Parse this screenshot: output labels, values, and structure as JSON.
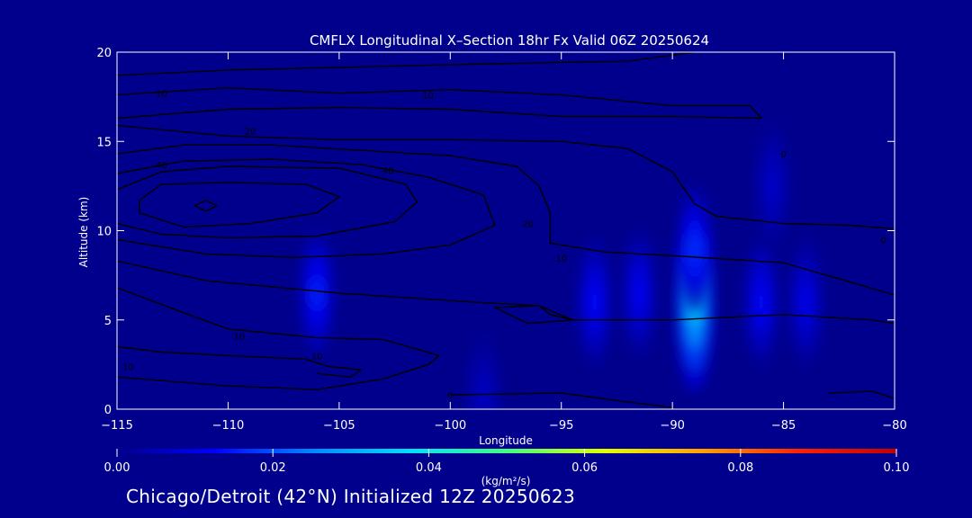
{
  "chart_data": {
    "type": "heatmap",
    "title": "CMFLX Longitudinal X–Section 18hr  Fx Valid 06Z 20250624",
    "xlabel": "Longitude",
    "ylabel": "Altitude (km)",
    "xlim": [
      -115,
      -80
    ],
    "ylim": [
      0,
      20
    ],
    "x_ticks": [
      -115,
      -110,
      -105,
      -100,
      -95,
      -90,
      -85,
      -80
    ],
    "x_tick_labels": [
      "−115",
      "−110",
      "−105",
      "−100",
      "−95",
      "−90",
      "−85",
      "−80"
    ],
    "y_ticks": [
      0,
      5,
      10,
      15,
      20
    ],
    "y_tick_labels": [
      "0",
      "5",
      "10",
      "15",
      "20"
    ],
    "colorbar": {
      "label": "(kg/m²/s)",
      "min": 0.0,
      "max": 0.1,
      "ticks": [
        0.0,
        0.02,
        0.04,
        0.06,
        0.08,
        0.1
      ],
      "tick_labels": [
        "0.00",
        "0.02",
        "0.04",
        "0.06",
        "0.08",
        "0.10"
      ],
      "colors": [
        "#00008c",
        "#0000ff",
        "#0088ff",
        "#00e0ff",
        "#40ff80",
        "#e0ff00",
        "#ffa000",
        "#ff2000",
        "#c00000"
      ]
    },
    "flux_cells": [
      {
        "lon": -106,
        "alt": 6.5,
        "value": 0.013
      },
      {
        "lon": -93.5,
        "alt": 6.0,
        "value": 0.011
      },
      {
        "lon": -91.5,
        "alt": 6.5,
        "value": 0.01
      },
      {
        "lon": -89.0,
        "alt": 5.8,
        "value": 0.03
      },
      {
        "lon": -89.0,
        "alt": 9.0,
        "value": 0.014
      },
      {
        "lon": -86.0,
        "alt": 6.0,
        "value": 0.011
      },
      {
        "lon": -84.0,
        "alt": 6.0,
        "value": 0.009
      },
      {
        "lon": -85.5,
        "alt": 12.5,
        "value": 0.006
      },
      {
        "lon": -98.5,
        "alt": 0.8,
        "value": 0.005
      }
    ],
    "wind_contours": [
      {
        "points": [
          [
            -115,
            18.7
          ],
          [
            -110,
            19.0
          ],
          [
            -100,
            19.3
          ],
          [
            -92,
            19.5
          ],
          [
            -89,
            20
          ]
        ]
      },
      {
        "points": [
          [
            -115,
            17.6
          ],
          [
            -110,
            18.0
          ],
          [
            -105,
            17.7
          ],
          [
            -100,
            17.9
          ],
          [
            -95,
            17.6
          ],
          [
            -90,
            17.0
          ],
          [
            -86.5,
            17.0
          ],
          [
            -86,
            16.3
          ],
          [
            -90,
            16.4
          ],
          [
            -95,
            16.4
          ],
          [
            -100,
            16.8
          ],
          [
            -105,
            16.9
          ],
          [
            -110,
            16.8
          ],
          [
            -115,
            16.3
          ]
        ]
      },
      {
        "points": [
          [
            -115,
            15.9
          ],
          [
            -110,
            15.3
          ],
          [
            -105,
            15.1
          ],
          [
            -100,
            15.1
          ],
          [
            -95,
            15.0
          ],
          [
            -92,
            14.6
          ],
          [
            -90,
            13.3
          ],
          [
            -89,
            11.5
          ],
          [
            -88,
            10.8
          ],
          [
            -85,
            10.4
          ],
          [
            -82,
            10.3
          ],
          [
            -80,
            10.1
          ]
        ]
      },
      {
        "points": [
          [
            -115,
            14.3
          ],
          [
            -112,
            14.8
          ],
          [
            -108,
            14.8
          ],
          [
            -104,
            14.5
          ],
          [
            -100,
            14.2
          ],
          [
            -97,
            13.6
          ],
          [
            -96,
            12.5
          ],
          [
            -95.5,
            11.0
          ],
          [
            -95.5,
            9.3
          ],
          [
            -93,
            8.8
          ],
          [
            -90,
            8.6
          ],
          [
            -85,
            8.2
          ],
          [
            -80,
            6.4
          ]
        ]
      },
      {
        "points": [
          [
            -115,
            13.2
          ],
          [
            -112,
            13.9
          ],
          [
            -108,
            14.0
          ],
          [
            -104,
            13.7
          ],
          [
            -101,
            13.0
          ],
          [
            -98.5,
            12.0
          ],
          [
            -98,
            10.3
          ],
          [
            -100,
            9.2
          ],
          [
            -103,
            8.7
          ],
          [
            -107,
            8.5
          ],
          [
            -111,
            8.7
          ],
          [
            -115,
            9.5
          ]
        ]
      },
      {
        "points": [
          [
            -115,
            12.3
          ],
          [
            -113,
            13.3
          ],
          [
            -110,
            13.6
          ],
          [
            -105,
            13.5
          ],
          [
            -102,
            12.6
          ],
          [
            -101.5,
            11.6
          ],
          [
            -102.5,
            10.5
          ],
          [
            -106,
            9.7
          ],
          [
            -110,
            9.6
          ],
          [
            -113,
            9.8
          ],
          [
            -115,
            10.4
          ]
        ]
      },
      {
        "points": [
          [
            -114,
            11.7
          ],
          [
            -113,
            12.6
          ],
          [
            -110,
            12.7
          ],
          [
            -106.5,
            12.6
          ],
          [
            -105,
            11.9
          ],
          [
            -106,
            11.0
          ],
          [
            -109,
            10.4
          ],
          [
            -112,
            10.2
          ],
          [
            -114,
            11.0
          ],
          [
            -114,
            11.7
          ]
        ]
      },
      {
        "points": [
          [
            -111,
            11.7
          ],
          [
            -110.5,
            11.4
          ],
          [
            -111,
            11.1
          ],
          [
            -111.5,
            11.4
          ],
          [
            -111,
            11.7
          ]
        ]
      },
      {
        "points": [
          [
            -115,
            8.3
          ],
          [
            -111,
            7.2
          ],
          [
            -105,
            6.5
          ],
          [
            -99,
            6.0
          ],
          [
            -96,
            5.8
          ],
          [
            -95.5,
            5.3
          ],
          [
            -94.5,
            5.0
          ],
          [
            -90,
            5.0
          ],
          [
            -85,
            5.3
          ],
          [
            -81,
            5.0
          ],
          [
            -80,
            4.8
          ]
        ]
      },
      {
        "points": [
          [
            -98,
            5.7
          ],
          [
            -96,
            5.8
          ],
          [
            -94.5,
            5.0
          ],
          [
            -96.5,
            4.8
          ],
          [
            -98,
            5.7
          ]
        ]
      },
      {
        "points": [
          [
            -115,
            6.8
          ],
          [
            -112,
            5.4
          ],
          [
            -110,
            4.5
          ],
          [
            -106,
            4.0
          ],
          [
            -103,
            3.9
          ],
          [
            -100.5,
            3.0
          ],
          [
            -101,
            2.5
          ],
          [
            -103,
            1.7
          ],
          [
            -106,
            1.1
          ],
          [
            -110,
            1.3
          ],
          [
            -115,
            1.8
          ]
        ]
      },
      {
        "points": [
          [
            -115,
            3.5
          ],
          [
            -113,
            3.2
          ],
          [
            -110,
            3.0
          ],
          [
            -106.5,
            2.8
          ],
          [
            -105.5,
            2.4
          ],
          [
            -104,
            2.2
          ],
          [
            -104.5,
            1.8
          ],
          [
            -106,
            2.0
          ]
        ]
      },
      {
        "points": [
          [
            -100,
            0.8
          ],
          [
            -95,
            0.9
          ],
          [
            -92,
            0.4
          ],
          [
            -90,
            0.1
          ]
        ]
      },
      {
        "points": [
          [
            -83,
            0.9
          ],
          [
            -81,
            1.0
          ],
          [
            -80,
            0.6
          ]
        ]
      }
    ],
    "contour_labels": [
      {
        "text": "10",
        "lon": -113,
        "alt": 17.7
      },
      {
        "text": "10",
        "lon": -101,
        "alt": 17.6
      },
      {
        "text": "20",
        "lon": -109,
        "alt": 15.6
      },
      {
        "text": "40",
        "lon": -113,
        "alt": 13.7
      },
      {
        "text": "40",
        "lon": -102.8,
        "alt": 13.4
      },
      {
        "text": "20",
        "lon": -96.5,
        "alt": 10.4
      },
      {
        "text": "10",
        "lon": -95,
        "alt": 8.5
      },
      {
        "text": "0",
        "lon": -85,
        "alt": 14.3
      },
      {
        "text": "0",
        "lon": -80.5,
        "alt": 9.5
      },
      {
        "text": "10",
        "lon": -109.5,
        "alt": 4.1
      },
      {
        "text": "10",
        "lon": -114.5,
        "alt": 2.4
      },
      {
        "text": "10",
        "lon": -106,
        "alt": 3.0
      },
      {
        "text": "0",
        "lon": -100,
        "alt": 0.8
      }
    ]
  },
  "footer": {
    "text": "Chicago/Detroit (42°N) Initialized 12Z 20250623"
  }
}
